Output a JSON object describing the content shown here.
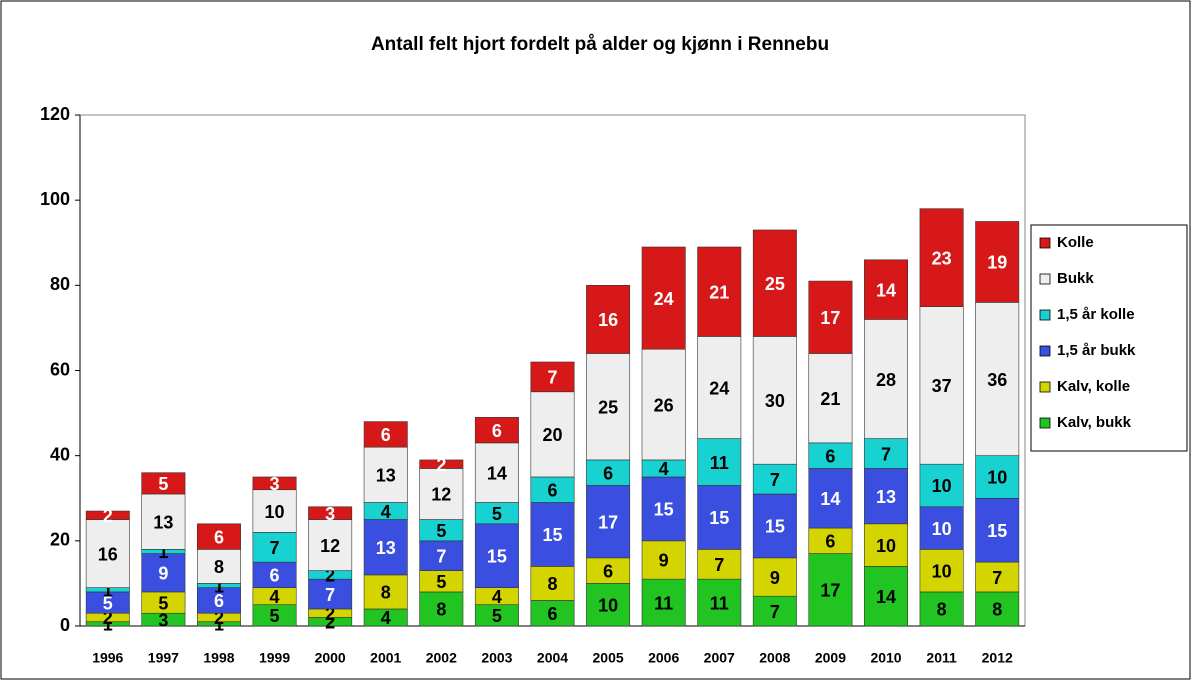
{
  "chart_data": {
    "type": "stacked_bar",
    "title": "Antall felt hjort fordelt på alder og kjønn i Rennebu",
    "categories": [
      "1996",
      "1997",
      "1998",
      "1999",
      "2000",
      "2001",
      "2002",
      "2003",
      "2004",
      "2005",
      "2006",
      "2007",
      "2008",
      "2009",
      "2010",
      "2011",
      "2012"
    ],
    "series": [
      {
        "name": "Kalv, bukk",
        "color": "#22c422",
        "values": [
          1,
          3,
          1,
          5,
          2,
          4,
          8,
          5,
          6,
          10,
          11,
          11,
          7,
          17,
          14,
          8,
          8
        ]
      },
      {
        "name": "Kalv, kolle",
        "color": "#d4d400",
        "values": [
          2,
          5,
          2,
          4,
          2,
          8,
          5,
          4,
          8,
          6,
          9,
          7,
          9,
          6,
          10,
          10,
          7
        ]
      },
      {
        "name": "1,5 år bukk",
        "color": "#3a4fe0",
        "values": [
          5,
          9,
          6,
          6,
          7,
          13,
          7,
          15,
          15,
          17,
          15,
          15,
          15,
          14,
          13,
          10,
          15
        ]
      },
      {
        "name": "1,5 år kolle",
        "color": "#18d2d2",
        "values": [
          1,
          1,
          1,
          7,
          2,
          4,
          5,
          5,
          6,
          6,
          4,
          11,
          7,
          6,
          7,
          10,
          10
        ]
      },
      {
        "name": "Bukk",
        "color": "#eeeeee",
        "values": [
          16,
          13,
          8,
          10,
          12,
          13,
          12,
          14,
          20,
          25,
          26,
          24,
          30,
          21,
          28,
          37,
          36
        ]
      },
      {
        "name": "Kolle",
        "color": "#d61818",
        "values": [
          2,
          5,
          6,
          3,
          3,
          6,
          2,
          6,
          7,
          16,
          24,
          21,
          25,
          17,
          14,
          23,
          19
        ]
      }
    ],
    "ylim": [
      0,
      120
    ],
    "yticks": [
      0,
      20,
      40,
      60,
      80,
      100,
      120
    ],
    "grid": false,
    "legend": "right"
  }
}
